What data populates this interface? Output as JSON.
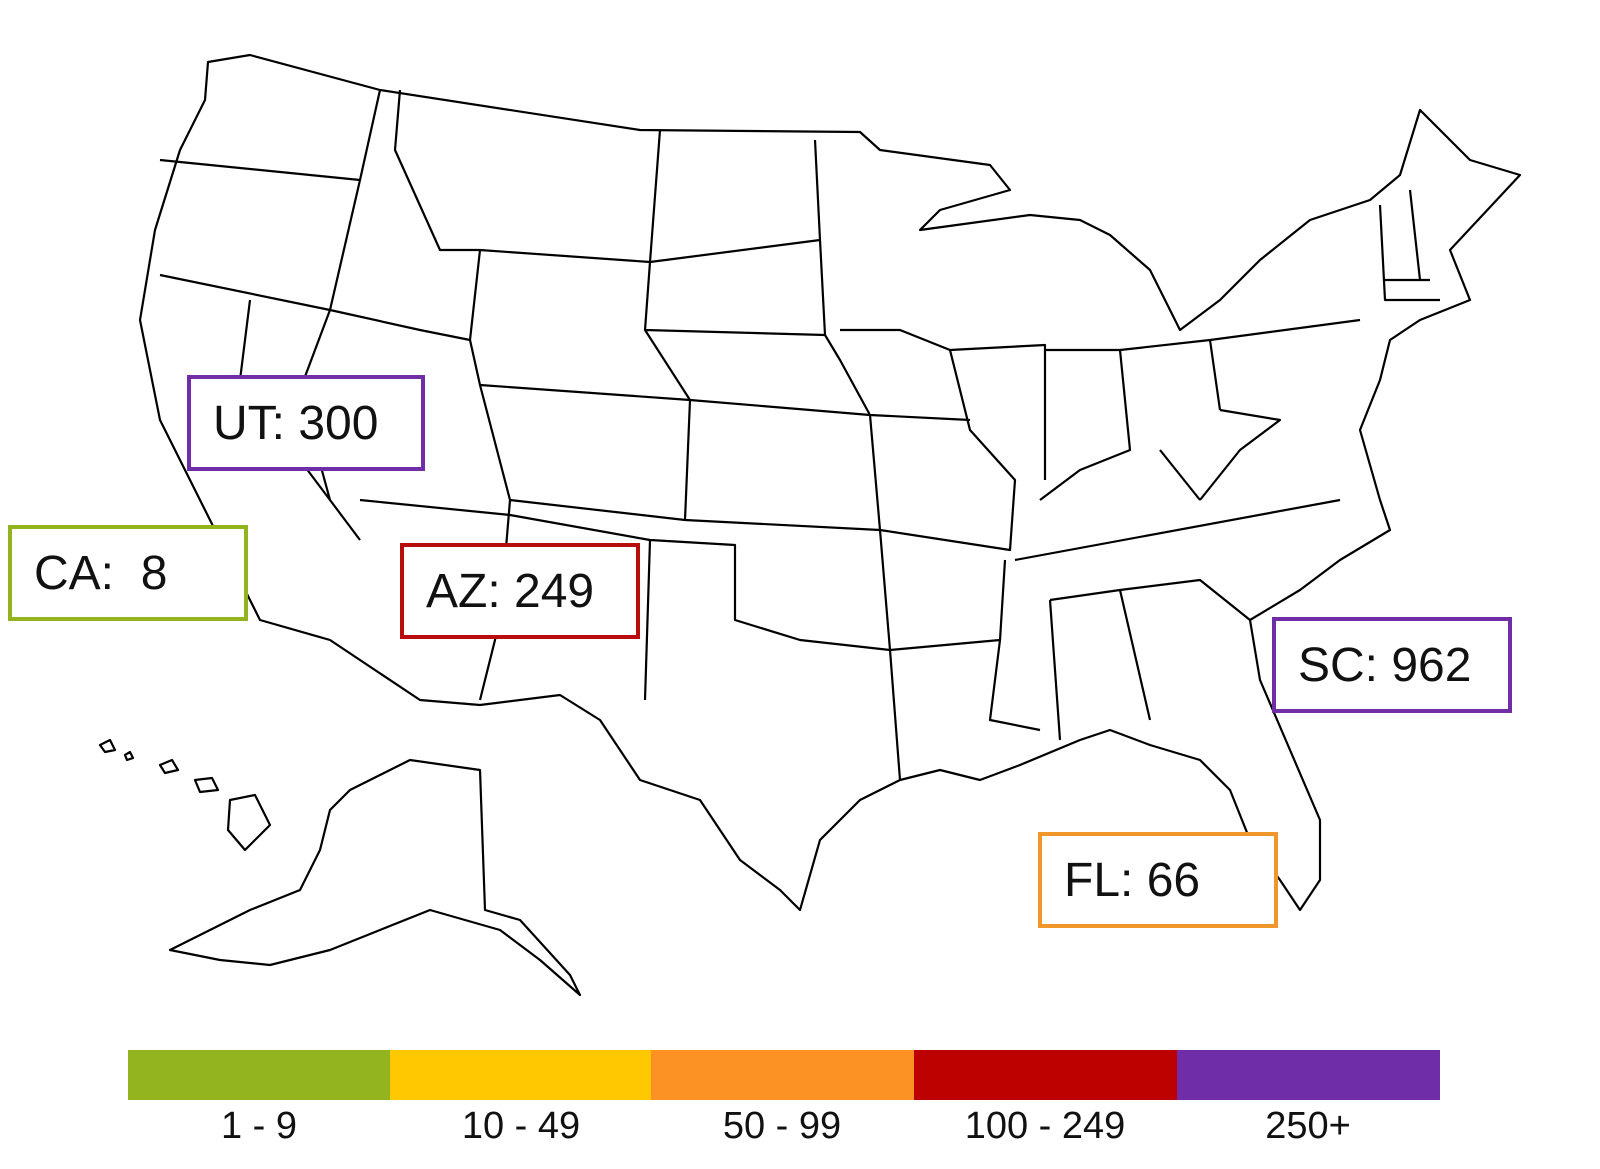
{
  "labels": {
    "ut": {
      "text": "UT: 300",
      "color": "#6f2da8"
    },
    "ca": {
      "text": "CA:  8",
      "color": "#93b41e"
    },
    "az": {
      "text": "AZ: 249",
      "color": "#b80d0d"
    },
    "sc": {
      "text": "SC: 962",
      "color": "#6f2da8"
    },
    "fl": {
      "text": "FL: 66",
      "color": "#f0962a"
    }
  },
  "legend": [
    {
      "label": "1 - 9",
      "color": "#93b41e"
    },
    {
      "label": "10 - 49",
      "color": "#ffc800"
    },
    {
      "label": "50 - 99",
      "color": "#fc9224"
    },
    {
      "label": "100 - 249",
      "color": "#bd0000"
    },
    {
      "label": "250+",
      "color": "#6f2da8"
    }
  ]
}
